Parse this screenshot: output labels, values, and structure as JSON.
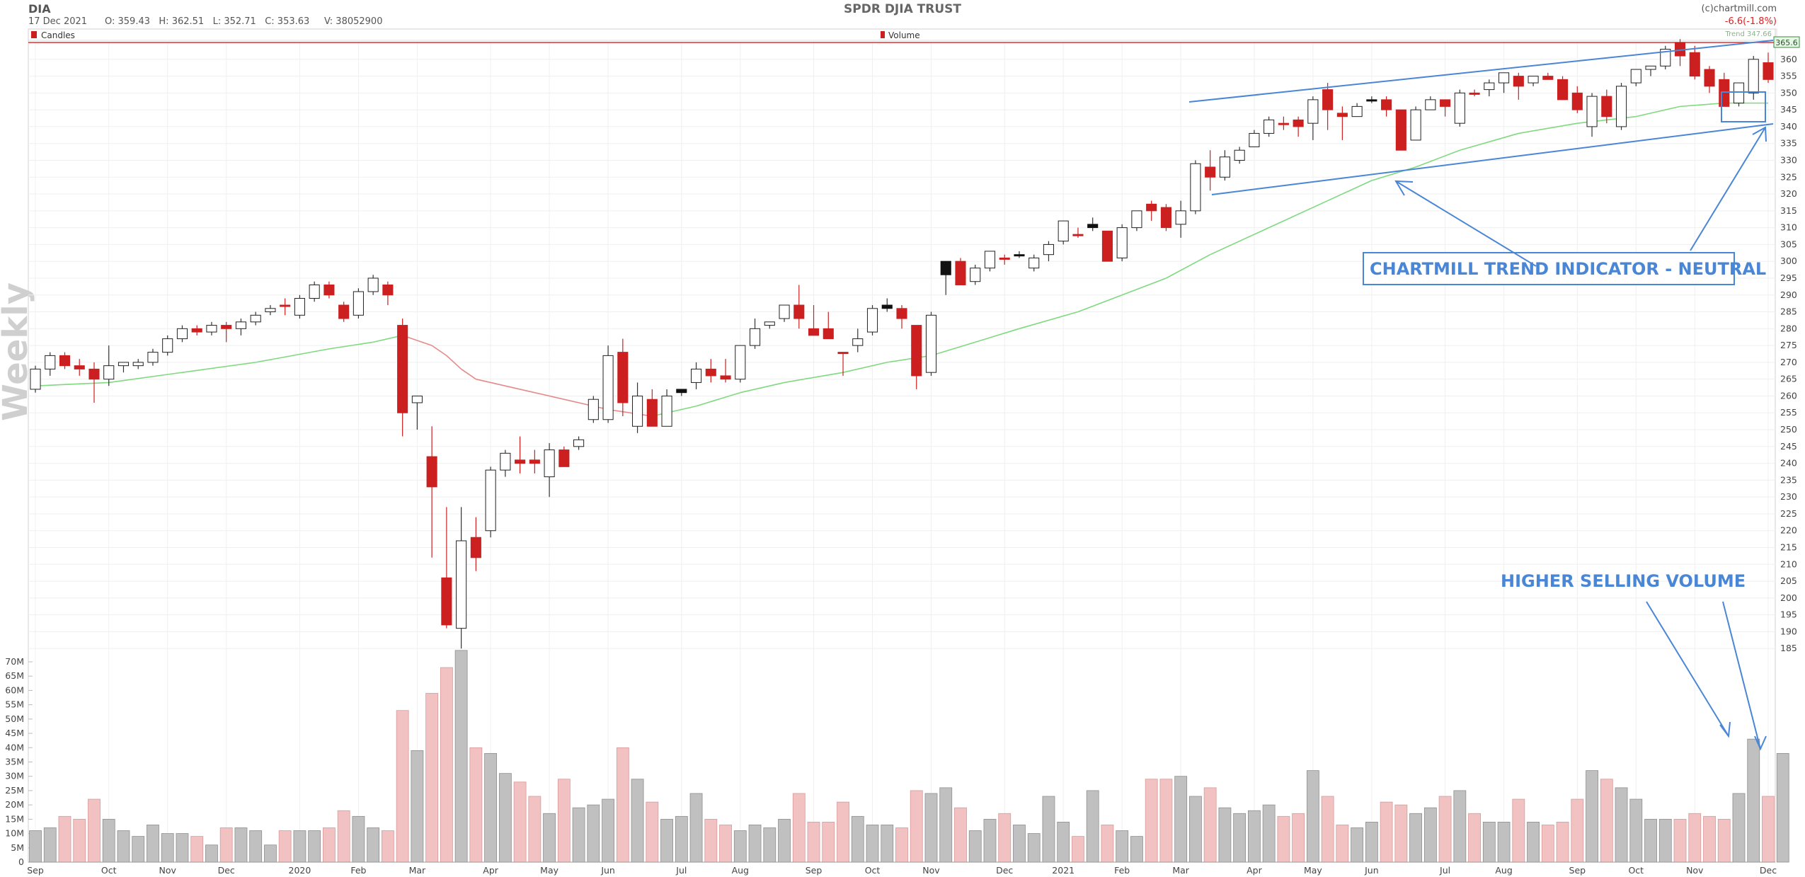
{
  "header": {
    "symbol": "DIA",
    "title": "SPDR DJIA TRUST",
    "copyright": "(c)chartmill.com",
    "date": "17 Dec 2021",
    "ohlcv_text": "O: 359.43   H: 362.51   L: 352.71   C: 353.63     V: 38052900",
    "change": "-6.6(-1.8%)",
    "trend_label": "Trend 347.66",
    "last_price": "365.6"
  },
  "legend": {
    "candles_label": "Candles",
    "volume_label": "Volume"
  },
  "side_label": "Weekly",
  "colors": {
    "bearish": "#cc2020",
    "bullish_fill": "#ffffff",
    "neutral": "#111111",
    "volume_bull": "#c0c0c0",
    "volume_bear": "#f2c2c2",
    "trend_up": "#7fd97f",
    "trend_down": "#e48a8a",
    "annotation": "#4a86d6",
    "limit_line": "#e03030"
  },
  "annotations": {
    "trend_indicator": "CHARTMILL TREND INDICATOR - NEUTRAL",
    "selling_volume": "HIGHER SELLING VOLUME"
  },
  "chart_data": {
    "type": "candlestick",
    "title": "SPDR DJIA TRUST",
    "timeframe": "Weekly",
    "price_axis": {
      "ylim": [
        180,
        365
      ],
      "ticks": [
        185,
        190,
        195,
        200,
        205,
        210,
        215,
        220,
        225,
        230,
        235,
        240,
        245,
        250,
        255,
        260,
        265,
        270,
        275,
        280,
        285,
        290,
        295,
        300,
        305,
        310,
        315,
        320,
        325,
        330,
        335,
        340,
        345,
        350,
        355,
        360
      ]
    },
    "volume_axis": {
      "ylim": [
        0,
        70000000
      ],
      "ticks": [
        "0",
        "5M",
        "10M",
        "15M",
        "20M",
        "25M",
        "30M",
        "35M",
        "40M",
        "45M",
        "50M",
        "55M",
        "60M",
        "65M",
        "70M"
      ]
    },
    "month_labels": [
      {
        "label": "Sep",
        "week": 0
      },
      {
        "label": "Oct",
        "week": 5
      },
      {
        "label": "Nov",
        "week": 9
      },
      {
        "label": "Dec",
        "week": 13
      },
      {
        "label": "2020",
        "week": 18
      },
      {
        "label": "Feb",
        "week": 22
      },
      {
        "label": "Mar",
        "week": 26
      },
      {
        "label": "Apr",
        "week": 31
      },
      {
        "label": "May",
        "week": 35
      },
      {
        "label": "Jun",
        "week": 39
      },
      {
        "label": "Jul",
        "week": 44
      },
      {
        "label": "Aug",
        "week": 48
      },
      {
        "label": "Sep",
        "week": 53
      },
      {
        "label": "Oct",
        "week": 57
      },
      {
        "label": "Nov",
        "week": 61
      },
      {
        "label": "Dec",
        "week": 66
      },
      {
        "label": "2021",
        "week": 70
      },
      {
        "label": "Feb",
        "week": 74
      },
      {
        "label": "Mar",
        "week": 78
      },
      {
        "label": "Apr",
        "week": 83
      },
      {
        "label": "May",
        "week": 87
      },
      {
        "label": "Jun",
        "week": 91
      },
      {
        "label": "Jul",
        "week": 96
      },
      {
        "label": "Aug",
        "week": 100
      },
      {
        "label": "Sep",
        "week": 105
      },
      {
        "label": "Oct",
        "week": 109
      },
      {
        "label": "Nov",
        "week": 113
      },
      {
        "label": "Dec",
        "week": 118
      }
    ],
    "candles": [
      [
        262,
        269,
        261,
        268,
        "up"
      ],
      [
        268,
        273,
        266,
        272,
        "up"
      ],
      [
        272,
        273,
        268,
        269,
        "down"
      ],
      [
        269,
        271,
        266,
        268,
        "down"
      ],
      [
        268,
        270,
        258,
        265,
        "down"
      ],
      [
        265,
        275,
        263,
        269,
        "up"
      ],
      [
        269,
        270,
        267,
        270,
        "up"
      ],
      [
        269,
        271,
        268,
        270,
        "up"
      ],
      [
        270,
        274,
        269,
        273,
        "up"
      ],
      [
        273,
        278,
        272,
        277,
        "up"
      ],
      [
        277,
        281,
        276,
        280,
        "up"
      ],
      [
        280,
        281,
        278,
        279,
        "down"
      ],
      [
        279,
        282,
        278,
        281,
        "up"
      ],
      [
        281,
        282,
        276,
        280,
        "down"
      ],
      [
        280,
        283,
        278,
        282,
        "up"
      ],
      [
        282,
        285,
        281,
        284,
        "up"
      ],
      [
        285,
        287,
        284,
        286,
        "up"
      ],
      [
        287,
        289,
        284,
        287,
        "down"
      ],
      [
        284,
        290,
        283,
        289,
        "up"
      ],
      [
        289,
        294,
        288,
        293,
        "up"
      ],
      [
        293,
        294,
        289,
        290,
        "down"
      ],
      [
        287,
        288,
        282,
        283,
        "down"
      ],
      [
        284,
        292,
        283,
        291,
        "up"
      ],
      [
        291,
        296,
        290,
        295,
        "up"
      ],
      [
        293,
        294,
        287,
        290,
        "down"
      ],
      [
        281,
        283,
        248,
        255,
        "down"
      ],
      [
        258,
        260,
        250,
        260,
        "up"
      ],
      [
        242,
        251,
        212,
        233,
        "down"
      ],
      [
        206,
        227,
        191,
        192,
        "down"
      ],
      [
        191,
        227,
        185,
        217,
        "up"
      ],
      [
        218,
        224,
        208,
        212,
        "down"
      ],
      [
        220,
        239,
        218,
        238,
        "up"
      ],
      [
        238,
        244,
        236,
        243,
        "up"
      ],
      [
        240,
        248,
        237,
        241,
        "down"
      ],
      [
        241,
        244,
        237,
        240,
        "down"
      ],
      [
        236,
        246,
        230,
        244,
        "up"
      ],
      [
        244,
        245,
        239,
        239,
        "down"
      ],
      [
        245,
        248,
        244,
        247,
        "up"
      ],
      [
        253,
        260,
        252,
        259,
        "up"
      ],
      [
        253,
        275,
        252,
        272,
        "up"
      ],
      [
        273,
        277,
        254,
        258,
        "down"
      ],
      [
        260,
        264,
        249,
        251,
        "up"
      ],
      [
        259,
        262,
        251,
        251,
        "down"
      ],
      [
        251,
        262,
        251,
        260,
        "up"
      ],
      [
        261,
        262,
        260,
        262,
        "neutral"
      ],
      [
        264,
        270,
        262,
        268,
        "up"
      ],
      [
        268,
        271,
        264,
        266,
        "down"
      ],
      [
        266,
        271,
        264,
        265,
        "down"
      ],
      [
        265,
        275,
        264,
        275,
        "up"
      ],
      [
        275,
        283,
        274,
        280,
        "up"
      ],
      [
        281,
        282,
        280,
        282,
        "up"
      ],
      [
        283,
        287,
        282,
        287,
        "up"
      ],
      [
        287,
        293,
        280,
        283,
        "down"
      ],
      [
        280,
        287,
        278,
        278,
        "down"
      ],
      [
        280,
        285,
        277,
        277,
        "down"
      ],
      [
        273,
        273,
        266,
        273,
        "down"
      ],
      [
        275,
        280,
        273,
        277,
        "up"
      ],
      [
        279,
        287,
        278,
        286,
        "up"
      ],
      [
        287,
        289,
        285,
        286,
        "neutral"
      ],
      [
        286,
        287,
        280,
        283,
        "down"
      ],
      [
        281,
        281,
        262,
        266,
        "down"
      ],
      [
        267,
        285,
        266,
        284,
        "up"
      ],
      [
        296,
        300,
        290,
        300,
        "neutral"
      ],
      [
        300,
        301,
        294,
        293,
        "down"
      ],
      [
        294,
        299,
        293,
        298,
        "up"
      ],
      [
        298,
        303,
        297,
        303,
        "up"
      ],
      [
        301,
        302,
        299,
        301,
        "down"
      ],
      [
        302,
        303,
        301,
        302,
        "neutral"
      ],
      [
        298,
        302,
        297,
        301,
        "up"
      ],
      [
        302,
        306,
        300,
        305,
        "up"
      ],
      [
        306,
        312,
        305,
        312,
        "up"
      ],
      [
        308,
        310,
        307,
        308,
        "down"
      ],
      [
        310,
        313,
        309,
        311,
        "neutral"
      ],
      [
        309,
        309,
        300,
        300,
        "down"
      ],
      [
        301,
        311,
        300,
        310,
        "up"
      ],
      [
        310,
        315,
        309,
        315,
        "up"
      ],
      [
        317,
        318,
        312,
        315,
        "down"
      ],
      [
        316,
        317,
        309,
        310,
        "down"
      ],
      [
        311,
        318,
        307,
        315,
        "up"
      ],
      [
        315,
        330,
        314,
        329,
        "up"
      ],
      [
        328,
        333,
        321,
        325,
        "down"
      ],
      [
        325,
        333,
        324,
        331,
        "up"
      ],
      [
        330,
        334,
        329,
        333,
        "up"
      ],
      [
        334,
        339,
        334,
        338,
        "up"
      ],
      [
        338,
        343,
        337,
        342,
        "up"
      ],
      [
        341,
        343,
        339,
        341,
        "down"
      ],
      [
        342,
        343,
        337,
        340,
        "down"
      ],
      [
        341,
        349,
        336,
        348,
        "up"
      ],
      [
        351,
        353,
        339,
        345,
        "down"
      ],
      [
        344,
        346,
        336,
        343,
        "down"
      ],
      [
        343,
        347,
        343,
        346,
        "up"
      ],
      [
        348,
        349,
        347,
        348,
        "neutral"
      ],
      [
        348,
        349,
        343,
        345,
        "down"
      ],
      [
        345,
        345,
        333,
        333,
        "down"
      ],
      [
        336,
        346,
        336,
        345,
        "up"
      ],
      [
        345,
        349,
        345,
        348,
        "up"
      ],
      [
        348,
        348,
        343,
        346,
        "down"
      ],
      [
        341,
        351,
        340,
        350,
        "up"
      ],
      [
        350,
        351,
        349,
        350,
        "down"
      ],
      [
        351,
        354,
        349,
        353,
        "up"
      ],
      [
        353,
        356,
        350,
        356,
        "up"
      ],
      [
        355,
        356,
        348,
        352,
        "down"
      ],
      [
        353,
        355,
        352,
        355,
        "up"
      ],
      [
        355,
        356,
        354,
        354,
        "down"
      ],
      [
        354,
        355,
        349,
        348,
        "down"
      ],
      [
        350,
        352,
        344,
        345,
        "down"
      ],
      [
        340,
        350,
        337,
        349,
        "up"
      ],
      [
        349,
        351,
        341,
        343,
        "down"
      ],
      [
        340,
        353,
        339,
        352,
        "up"
      ],
      [
        353,
        357,
        352,
        357,
        "up"
      ],
      [
        357,
        358,
        355,
        358,
        "up"
      ],
      [
        358,
        364,
        357,
        363,
        "up"
      ],
      [
        365,
        366,
        358,
        361,
        "down"
      ],
      [
        362,
        364,
        354,
        355,
        "down"
      ],
      [
        357,
        358,
        350,
        352,
        "down"
      ],
      [
        354,
        356,
        346,
        346,
        "down"
      ],
      [
        347,
        353,
        346,
        353,
        "up"
      ],
      [
        350,
        361,
        348,
        360,
        "up"
      ],
      [
        359,
        362,
        353,
        354,
        "down"
      ]
    ],
    "volume_millions": [
      11,
      12,
      16,
      15,
      22,
      15,
      11,
      9,
      13,
      10,
      10,
      9,
      6,
      12,
      12,
      11,
      6,
      11,
      11,
      11,
      12,
      18,
      16,
      12,
      11,
      53,
      39,
      59,
      68,
      74,
      40,
      38,
      31,
      28,
      23,
      17,
      29,
      19,
      20,
      22,
      40,
      29,
      21,
      15,
      16,
      24,
      15,
      13,
      11,
      13,
      12,
      15,
      24,
      14,
      14,
      21,
      16,
      13,
      13,
      12,
      25,
      24,
      26,
      19,
      11,
      15,
      17,
      13,
      10,
      23,
      14,
      9,
      25,
      13,
      11,
      9,
      29,
      29,
      30,
      23,
      26,
      19,
      17,
      18,
      20,
      16,
      17,
      32,
      23,
      13,
      12,
      14,
      21,
      20,
      17,
      19,
      23,
      25,
      17,
      14,
      14,
      22,
      14,
      13,
      14,
      22,
      32,
      29,
      26,
      22,
      15,
      15,
      15,
      17,
      16,
      15,
      24,
      43,
      23,
      38
    ],
    "trend_line": [
      {
        "week": 0,
        "value": 263
      },
      {
        "week": 5,
        "value": 264
      },
      {
        "week": 10,
        "value": 267
      },
      {
        "week": 15,
        "value": 270
      },
      {
        "week": 20,
        "value": 274
      },
      {
        "week": 23,
        "value": 276
      },
      {
        "week": 25,
        "value": 278
      },
      {
        "week": 27,
        "value": 275
      },
      {
        "week": 28,
        "value": 272
      },
      {
        "week": 29,
        "value": 268
      },
      {
        "week": 30,
        "value": 265
      },
      {
        "week": 33,
        "value": 262
      },
      {
        "week": 36,
        "value": 259
      },
      {
        "week": 39,
        "value": 256
      },
      {
        "week": 42,
        "value": 254
      },
      {
        "week": 45,
        "value": 257
      },
      {
        "week": 48,
        "value": 261
      },
      {
        "week": 51,
        "value": 264
      },
      {
        "week": 55,
        "value": 267
      },
      {
        "week": 58,
        "value": 270
      },
      {
        "week": 61,
        "value": 272
      },
      {
        "week": 64,
        "value": 276
      },
      {
        "week": 67,
        "value": 280
      },
      {
        "week": 71,
        "value": 285
      },
      {
        "week": 74,
        "value": 290
      },
      {
        "week": 77,
        "value": 295
      },
      {
        "week": 80,
        "value": 302
      },
      {
        "week": 84,
        "value": 310
      },
      {
        "week": 88,
        "value": 318
      },
      {
        "week": 91,
        "value": 324
      },
      {
        "week": 94,
        "value": 328
      },
      {
        "week": 97,
        "value": 333
      },
      {
        "week": 101,
        "value": 338
      },
      {
        "week": 105,
        "value": 341
      },
      {
        "week": 109,
        "value": 343
      },
      {
        "week": 112,
        "value": 346
      },
      {
        "week": 115,
        "value": 347
      },
      {
        "week": 118,
        "value": 347
      }
    ]
  }
}
